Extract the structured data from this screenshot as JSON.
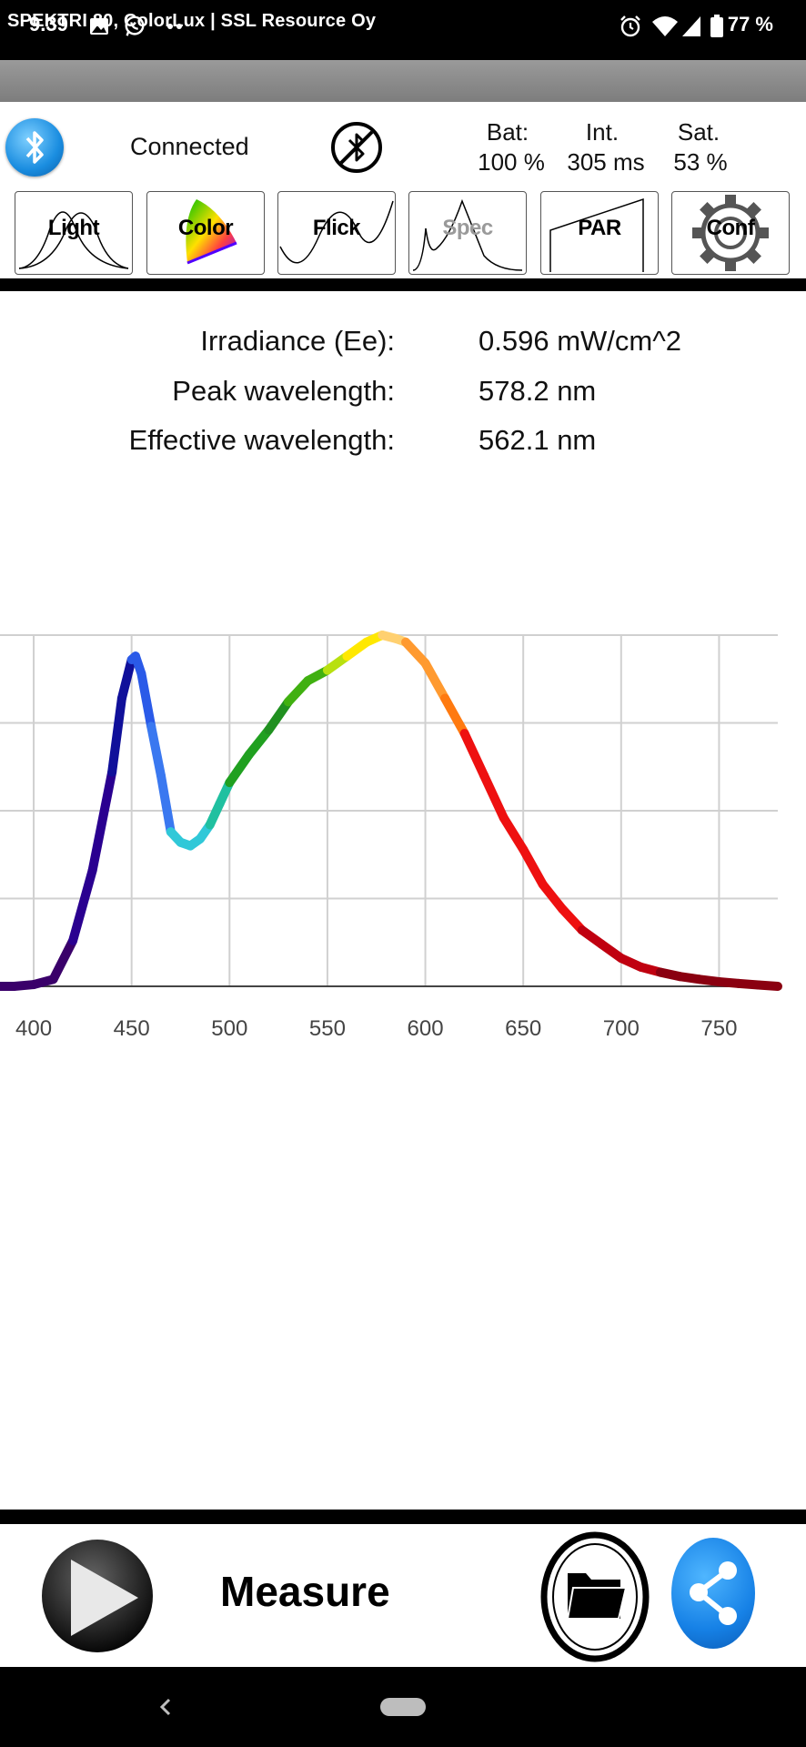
{
  "status_bar": {
    "time": "9.39",
    "battery": "77 %"
  },
  "title_bar": {
    "title": "SPEKTRI 80, ColorLux  |  SSL Resource Oy"
  },
  "connection": {
    "status": "Connected",
    "bat_label": "Bat:",
    "bat_value": "100 %",
    "int_label": "Int.",
    "int_value": "305 ms",
    "sat_label": "Sat.",
    "sat_value": "53 %"
  },
  "tabs": [
    {
      "label": "Light",
      "icon": "light-curves-icon"
    },
    {
      "label": "Color",
      "icon": "color-gamut-icon"
    },
    {
      "label": "Flick",
      "icon": "flicker-wave-icon"
    },
    {
      "label": "Spec",
      "icon": "spectrum-icon"
    },
    {
      "label": "PAR",
      "icon": "par-ramp-icon"
    },
    {
      "label": "Conf",
      "icon": "gear-icon"
    }
  ],
  "metrics": {
    "irradiance_label": "Irradiance (Ee):",
    "irradiance_value": "0.596 mW/cm^2",
    "peak_label": "Peak wavelength:",
    "peak_value": "578.2 nm",
    "effective_label": "Effective wavelength:",
    "effective_value": "562.1 nm"
  },
  "chart_data": {
    "type": "line",
    "title": "",
    "xlabel": "",
    "ylabel": "",
    "xlim": [
      380,
      780
    ],
    "ylim": [
      0,
      1.0
    ],
    "x_ticks": [
      400,
      450,
      500,
      550,
      600,
      650,
      700,
      750
    ],
    "grid": true,
    "line_color_mode": "wavelength-spectrum",
    "x": [
      380,
      390,
      400,
      410,
      420,
      430,
      440,
      445,
      450,
      452,
      455,
      460,
      465,
      470,
      475,
      480,
      485,
      490,
      495,
      500,
      510,
      520,
      530,
      540,
      550,
      560,
      570,
      578,
      585,
      590,
      600,
      610,
      620,
      630,
      640,
      650,
      660,
      670,
      680,
      690,
      700,
      710,
      720,
      730,
      740,
      750,
      760,
      770,
      780
    ],
    "values": [
      0.0,
      0.0,
      0.005,
      0.02,
      0.13,
      0.33,
      0.61,
      0.82,
      0.93,
      0.94,
      0.89,
      0.74,
      0.6,
      0.44,
      0.41,
      0.4,
      0.42,
      0.46,
      0.52,
      0.58,
      0.66,
      0.73,
      0.81,
      0.87,
      0.9,
      0.94,
      0.98,
      1.0,
      0.99,
      0.98,
      0.92,
      0.82,
      0.72,
      0.6,
      0.48,
      0.39,
      0.29,
      0.22,
      0.16,
      0.12,
      0.08,
      0.055,
      0.04,
      0.028,
      0.02,
      0.013,
      0.008,
      0.004,
      0.0
    ]
  },
  "controls": {
    "measure_label": "Measure"
  }
}
